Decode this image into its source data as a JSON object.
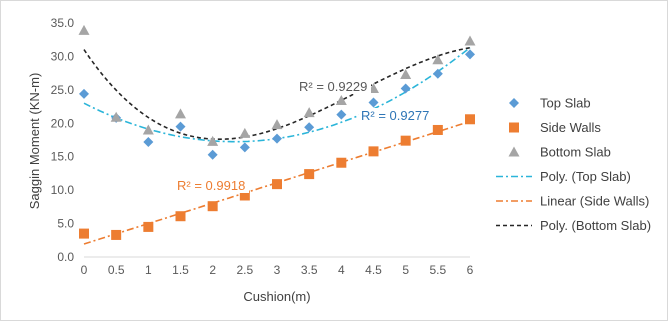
{
  "chart_data": {
    "type": "scatter",
    "title": "",
    "xlabel": "Cushion(m)",
    "ylabel": "Saggin Moment (KN-m)",
    "xlim": [
      0,
      6
    ],
    "ylim": [
      0,
      35
    ],
    "x_ticks": [
      "0",
      "0.5",
      "1",
      "1.5",
      "2",
      "2.5",
      "3",
      "3.5",
      "4",
      "4.5",
      "5",
      "5.5",
      "6"
    ],
    "y_ticks": [
      "0.0",
      "5.0",
      "10.0",
      "15.0",
      "20.0",
      "25.0",
      "30.0",
      "35.0"
    ],
    "x": [
      0,
      0.5,
      1,
      1.5,
      2,
      2.5,
      3,
      3.5,
      4,
      4.5,
      5,
      5.5,
      6
    ],
    "series": [
      {
        "name": "Top Slab",
        "marker": "diamond",
        "color": "#5b9bd5",
        "values": [
          24.4,
          20.8,
          17.2,
          19.5,
          15.3,
          16.4,
          17.7,
          19.4,
          21.3,
          23.1,
          25.2,
          27.4,
          30.3
        ]
      },
      {
        "name": "Side Walls",
        "marker": "square",
        "color": "#ed7d31",
        "values": [
          3.5,
          3.3,
          4.5,
          6.1,
          7.6,
          9.2,
          10.9,
          12.4,
          14.1,
          15.8,
          17.4,
          19.0,
          20.6
        ]
      },
      {
        "name": "Bottom Slab",
        "marker": "triangle",
        "color": "#a5a5a5",
        "values": [
          33.9,
          20.9,
          19.0,
          21.4,
          17.3,
          18.5,
          19.8,
          21.6,
          23.4,
          25.2,
          27.3,
          29.5,
          32.3
        ]
      }
    ],
    "trendlines": [
      {
        "name": "Poly. (Top Slab)",
        "kind": "poly2",
        "color": "#2bb5d9",
        "dash": "dash-dot",
        "r2_label": "R² = 0.9277",
        "label_color": "#2e75b6"
      },
      {
        "name": "Linear (Side Walls)",
        "kind": "linear",
        "color": "#ed7d31",
        "dash": "dash-dot",
        "r2_label": "R² = 0.9918",
        "label_color": "#ed7d31"
      },
      {
        "name": "Poly. (Bottom Slab)",
        "kind": "poly3",
        "color": "#262626",
        "dash": "dash",
        "r2_label": "R² = 0.9229",
        "label_color": "#595959"
      }
    ],
    "legend_position": "right",
    "grid": false
  }
}
